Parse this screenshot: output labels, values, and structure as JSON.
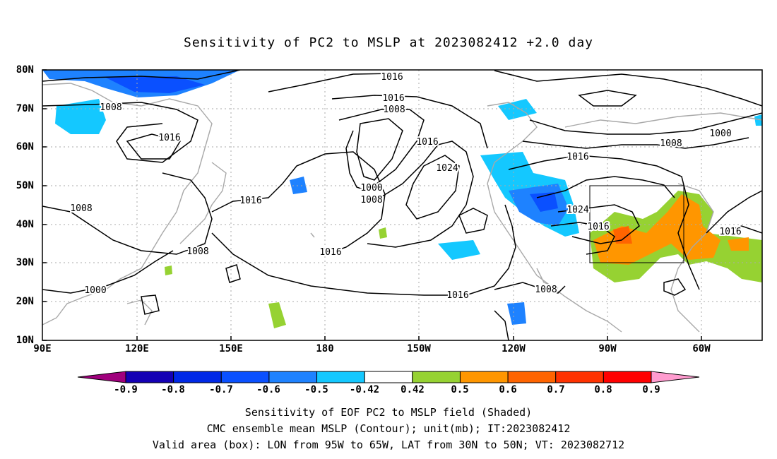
{
  "title": "Sensitivity of PC2 to MSLP at 2023082412 +2.0 day",
  "lat_labels": [
    "80N",
    "70N",
    "60N",
    "50N",
    "40N",
    "30N",
    "20N",
    "10N"
  ],
  "lon_labels": [
    "90E",
    "120E",
    "150E",
    "180",
    "150W",
    "120W",
    "90W",
    "60W"
  ],
  "contour_labels": [
    "1016",
    "1016",
    "1008",
    "1008",
    "1016",
    "1016",
    "1024",
    "1000",
    "1008",
    "1016",
    "1016",
    "1008",
    "1016",
    "1000",
    "1008",
    "1000",
    "1016",
    "1024",
    "1016",
    "1016",
    "1008",
    "1008"
  ],
  "colorbar_labels": [
    "-0.9",
    "-0.8",
    "-0.7",
    "-0.6",
    "-0.5",
    "-0.42",
    "0.42",
    "0.5",
    "0.6",
    "0.7",
    "0.8",
    "0.9"
  ],
  "colorbar_colors": [
    "#a0007d",
    "#1400b4",
    "#0028e6",
    "#0a50ff",
    "#1e82ff",
    "#14c8ff",
    "#ffffff",
    "#96d232",
    "#ff9600",
    "#ff6400",
    "#ff3200",
    "#ff0000",
    "#ff9ccf"
  ],
  "captions": [
    "Sensitivity of EOF PC2 to MSLP field (Shaded)",
    "CMC ensemble mean MSLP (Contour); unit(mb); IT:2023082412",
    "Valid area (box): LON from 95W to 65W, LAT from 30N to 50N; VT: 2023082712"
  ]
}
